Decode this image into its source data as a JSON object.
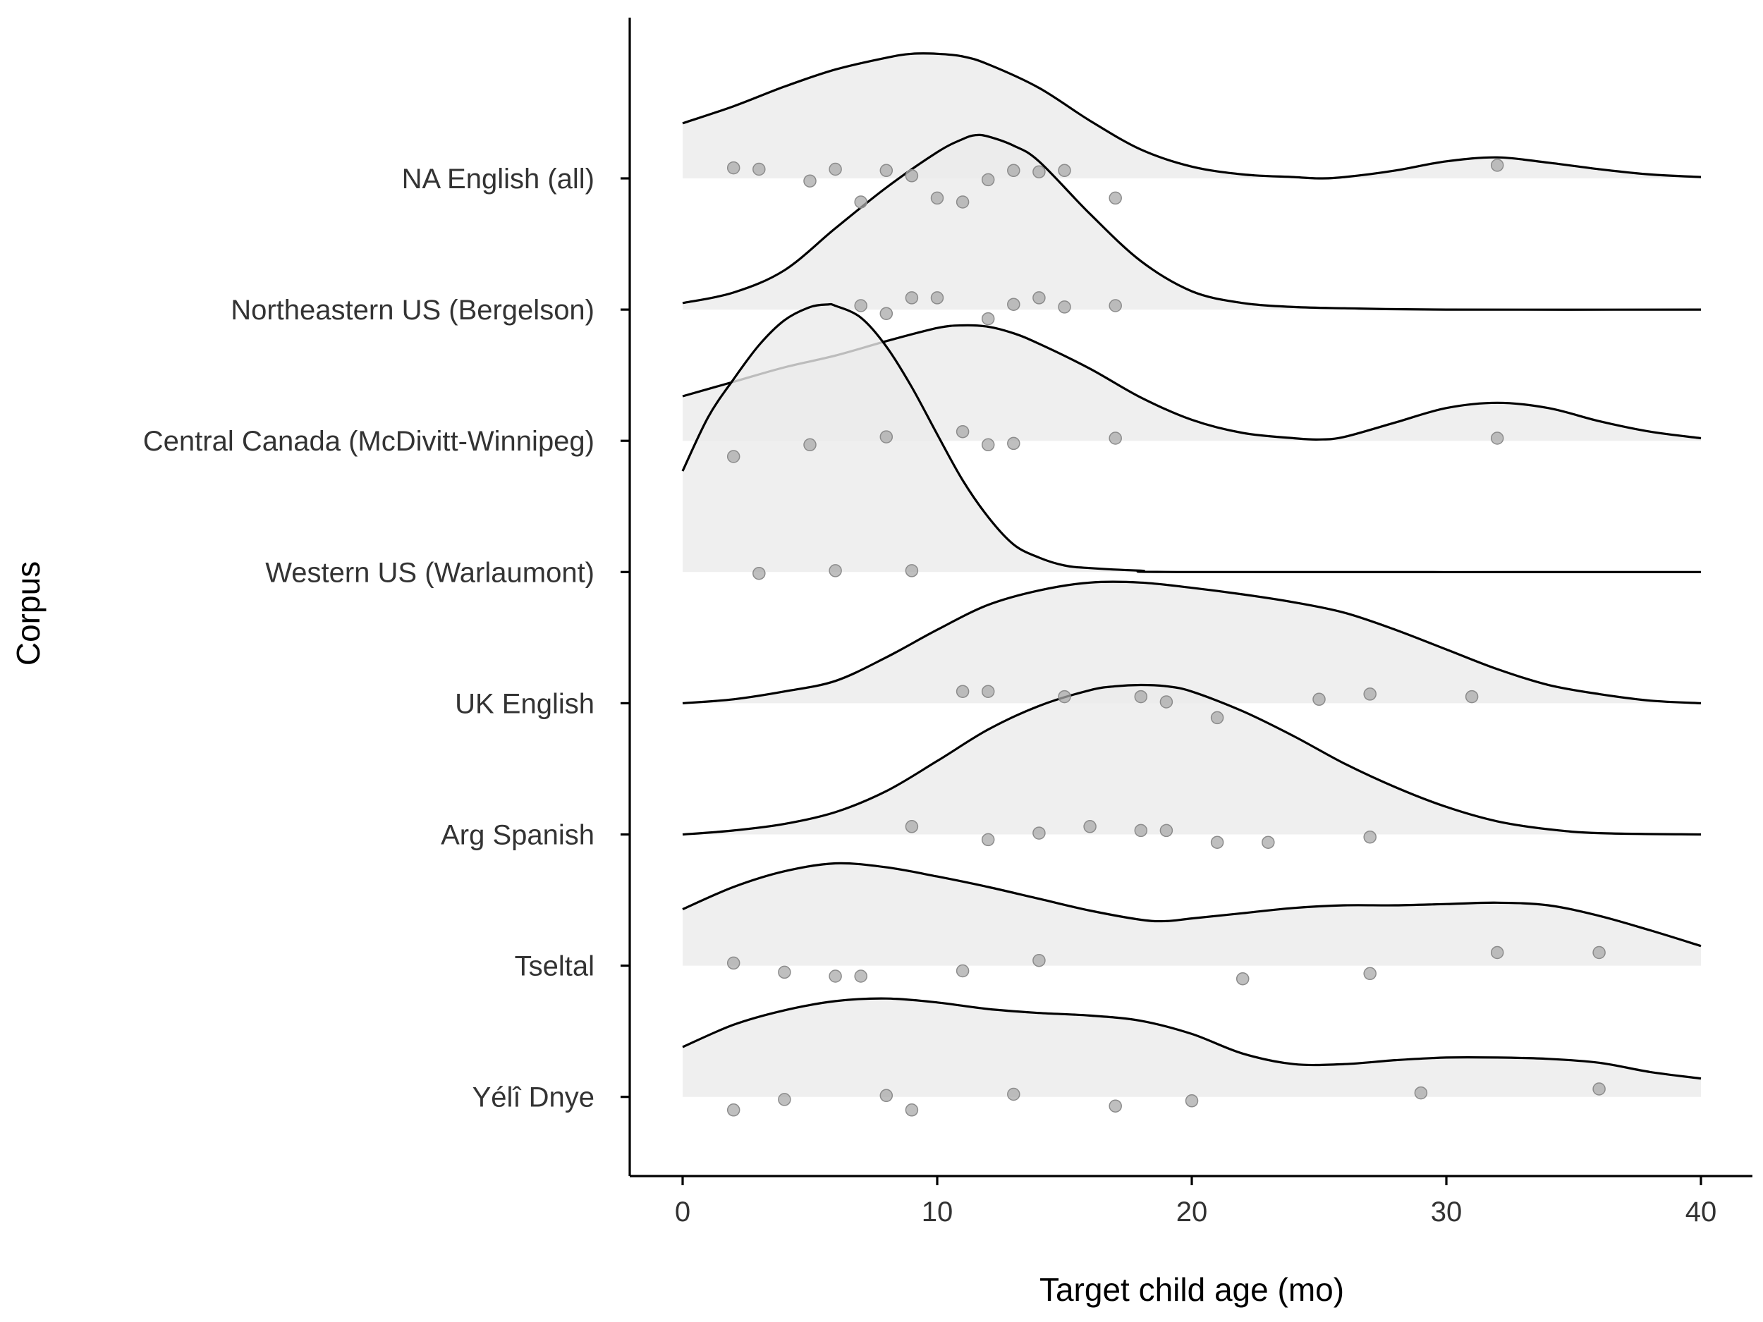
{
  "chart_data": {
    "type": "ridgeline",
    "xlabel": "Target child age (mo)",
    "ylabel": "Corpus",
    "xlim": [
      0,
      40
    ],
    "xticks": [
      0,
      10,
      20,
      30,
      40
    ],
    "grid": false,
    "legend": "none",
    "colors": {
      "fill": "#ebebeb",
      "line": "#000000",
      "point": "#aaaaaa"
    },
    "series": [
      {
        "name": "NA English (all)",
        "points": [
          [
            2,
            0.08
          ],
          [
            3,
            0.07
          ],
          [
            5,
            -0.02
          ],
          [
            6,
            0.07
          ],
          [
            7,
            -0.18
          ],
          [
            8,
            0.06
          ],
          [
            9,
            0.02
          ],
          [
            10,
            -0.15
          ],
          [
            11,
            -0.18
          ],
          [
            12,
            -0.01
          ],
          [
            13,
            0.06
          ],
          [
            14,
            0.05
          ],
          [
            15,
            0.06
          ],
          [
            17,
            -0.15
          ],
          [
            32,
            0.1
          ]
        ],
        "density": [
          [
            0,
            0.42
          ],
          [
            2,
            0.55
          ],
          [
            4,
            0.7
          ],
          [
            6,
            0.83
          ],
          [
            8,
            0.92
          ],
          [
            9,
            0.95
          ],
          [
            10,
            0.95
          ],
          [
            11,
            0.93
          ],
          [
            12,
            0.87
          ],
          [
            14,
            0.69
          ],
          [
            16,
            0.44
          ],
          [
            18,
            0.22
          ],
          [
            20,
            0.09
          ],
          [
            22,
            0.03
          ],
          [
            24,
            0.01
          ],
          [
            25,
            0.0
          ],
          [
            26,
            0.01
          ],
          [
            28,
            0.06
          ],
          [
            30,
            0.13
          ],
          [
            32,
            0.16
          ],
          [
            34,
            0.12
          ],
          [
            36,
            0.07
          ],
          [
            38,
            0.03
          ],
          [
            40,
            0.01
          ]
        ]
      },
      {
        "name": "Northeastern US (Bergelson)",
        "points": [
          [
            7,
            0.03
          ],
          [
            8,
            -0.03
          ],
          [
            9,
            0.09
          ],
          [
            10,
            0.09
          ],
          [
            12,
            -0.07
          ],
          [
            13,
            0.04
          ],
          [
            14,
            0.09
          ],
          [
            15,
            0.02
          ],
          [
            17,
            0.03
          ]
        ],
        "density": [
          [
            0,
            0.05
          ],
          [
            2,
            0.13
          ],
          [
            4,
            0.3
          ],
          [
            6,
            0.62
          ],
          [
            8,
            0.93
          ],
          [
            10,
            1.2
          ],
          [
            11,
            1.3
          ],
          [
            11.5,
            1.33
          ],
          [
            12,
            1.32
          ],
          [
            13,
            1.25
          ],
          [
            14,
            1.13
          ],
          [
            16,
            0.73
          ],
          [
            18,
            0.37
          ],
          [
            20,
            0.14
          ],
          [
            22,
            0.05
          ],
          [
            24,
            0.02
          ],
          [
            26,
            0.01
          ],
          [
            30,
            0.0
          ],
          [
            40,
            0.0
          ]
        ]
      },
      {
        "name": "Central Canada (McDivitt-Winnipeg)",
        "points": [
          [
            2,
            -0.12
          ],
          [
            5,
            -0.03
          ],
          [
            8,
            0.03
          ],
          [
            11,
            0.07
          ],
          [
            12,
            -0.03
          ],
          [
            13,
            -0.02
          ],
          [
            17,
            0.02
          ],
          [
            32,
            0.02
          ]
        ],
        "density": [
          [
            0,
            0.34
          ],
          [
            2,
            0.45
          ],
          [
            4,
            0.56
          ],
          [
            6,
            0.65
          ],
          [
            8,
            0.76
          ],
          [
            10,
            0.86
          ],
          [
            11,
            0.88
          ],
          [
            12,
            0.87
          ],
          [
            13,
            0.82
          ],
          [
            14,
            0.74
          ],
          [
            16,
            0.55
          ],
          [
            18,
            0.33
          ],
          [
            20,
            0.16
          ],
          [
            22,
            0.06
          ],
          [
            24,
            0.02
          ],
          [
            25,
            0.01
          ],
          [
            26,
            0.03
          ],
          [
            28,
            0.14
          ],
          [
            30,
            0.25
          ],
          [
            32,
            0.29
          ],
          [
            34,
            0.25
          ],
          [
            36,
            0.15
          ],
          [
            38,
            0.07
          ],
          [
            40,
            0.02
          ]
        ]
      },
      {
        "name": "Western US (Warlaumont)",
        "points": [
          [
            3,
            -0.01
          ],
          [
            6,
            0.01
          ],
          [
            9,
            0.01
          ]
        ],
        "density": [
          [
            0,
            0.77
          ],
          [
            1,
            1.18
          ],
          [
            2,
            1.47
          ],
          [
            3,
            1.73
          ],
          [
            4,
            1.92
          ],
          [
            5,
            2.02
          ],
          [
            5.7,
            2.04
          ],
          [
            6,
            2.03
          ],
          [
            7,
            1.94
          ],
          [
            8,
            1.72
          ],
          [
            9,
            1.41
          ],
          [
            10,
            1.05
          ],
          [
            11,
            0.7
          ],
          [
            12,
            0.42
          ],
          [
            13,
            0.21
          ],
          [
            14,
            0.11
          ],
          [
            15,
            0.05
          ],
          [
            16,
            0.03
          ],
          [
            18,
            0.01
          ],
          [
            20,
            0.0
          ],
          [
            40,
            0.0
          ]
        ]
      },
      {
        "name": "UK English",
        "points": [
          [
            11,
            0.09
          ],
          [
            12,
            0.09
          ],
          [
            15,
            0.05
          ],
          [
            18,
            0.05
          ],
          [
            19,
            0.01
          ],
          [
            21,
            -0.11
          ],
          [
            25,
            0.03
          ],
          [
            27,
            0.07
          ],
          [
            31,
            0.05
          ]
        ],
        "density": [
          [
            0,
            0.0
          ],
          [
            2,
            0.03
          ],
          [
            4,
            0.09
          ],
          [
            6,
            0.17
          ],
          [
            8,
            0.35
          ],
          [
            10,
            0.56
          ],
          [
            12,
            0.75
          ],
          [
            14,
            0.86
          ],
          [
            16,
            0.92
          ],
          [
            18,
            0.92
          ],
          [
            20,
            0.88
          ],
          [
            22,
            0.83
          ],
          [
            24,
            0.77
          ],
          [
            26,
            0.69
          ],
          [
            28,
            0.56
          ],
          [
            30,
            0.41
          ],
          [
            32,
            0.26
          ],
          [
            34,
            0.14
          ],
          [
            36,
            0.07
          ],
          [
            38,
            0.02
          ],
          [
            40,
            0.0
          ]
        ]
      },
      {
        "name": "Arg Spanish",
        "points": [
          [
            9,
            0.06
          ],
          [
            12,
            -0.04
          ],
          [
            14,
            0.01
          ],
          [
            16,
            0.06
          ],
          [
            18,
            0.03
          ],
          [
            19,
            0.03
          ],
          [
            21,
            -0.06
          ],
          [
            23,
            -0.06
          ],
          [
            27,
            -0.02
          ]
        ],
        "density": [
          [
            0,
            0.0
          ],
          [
            2,
            0.03
          ],
          [
            4,
            0.08
          ],
          [
            6,
            0.17
          ],
          [
            8,
            0.33
          ],
          [
            10,
            0.56
          ],
          [
            12,
            0.8
          ],
          [
            14,
            0.98
          ],
          [
            16,
            1.1
          ],
          [
            17,
            1.13
          ],
          [
            18,
            1.14
          ],
          [
            19,
            1.13
          ],
          [
            20,
            1.09
          ],
          [
            22,
            0.94
          ],
          [
            24,
            0.75
          ],
          [
            26,
            0.54
          ],
          [
            28,
            0.36
          ],
          [
            30,
            0.21
          ],
          [
            32,
            0.1
          ],
          [
            34,
            0.04
          ],
          [
            36,
            0.01
          ],
          [
            40,
            0.0
          ]
        ]
      },
      {
        "name": "Tseltal",
        "points": [
          [
            2,
            0.02
          ],
          [
            4,
            -0.05
          ],
          [
            6,
            -0.08
          ],
          [
            7,
            -0.08
          ],
          [
            11,
            -0.04
          ],
          [
            14,
            0.04
          ],
          [
            22,
            -0.1
          ],
          [
            27,
            -0.06
          ],
          [
            32,
            0.1
          ],
          [
            36,
            0.1
          ]
        ],
        "density": [
          [
            0,
            0.43
          ],
          [
            2,
            0.6
          ],
          [
            4,
            0.72
          ],
          [
            6,
            0.78
          ],
          [
            8,
            0.75
          ],
          [
            10,
            0.68
          ],
          [
            12,
            0.6
          ],
          [
            14,
            0.51
          ],
          [
            16,
            0.42
          ],
          [
            18,
            0.35
          ],
          [
            19,
            0.34
          ],
          [
            20,
            0.36
          ],
          [
            22,
            0.4
          ],
          [
            24,
            0.44
          ],
          [
            26,
            0.46
          ],
          [
            28,
            0.46
          ],
          [
            30,
            0.47
          ],
          [
            32,
            0.48
          ],
          [
            34,
            0.46
          ],
          [
            36,
            0.38
          ],
          [
            38,
            0.27
          ],
          [
            40,
            0.15
          ]
        ]
      },
      {
        "name": "Yélî Dnye",
        "points": [
          [
            2,
            -0.1
          ],
          [
            4,
            -0.02
          ],
          [
            8,
            0.01
          ],
          [
            9,
            -0.1
          ],
          [
            13,
            0.02
          ],
          [
            17,
            -0.07
          ],
          [
            20,
            -0.03
          ],
          [
            29,
            0.03
          ],
          [
            36,
            0.06
          ]
        ],
        "density": [
          [
            0,
            0.38
          ],
          [
            2,
            0.55
          ],
          [
            4,
            0.66
          ],
          [
            6,
            0.73
          ],
          [
            8,
            0.75
          ],
          [
            10,
            0.72
          ],
          [
            12,
            0.67
          ],
          [
            14,
            0.64
          ],
          [
            16,
            0.62
          ],
          [
            18,
            0.58
          ],
          [
            20,
            0.48
          ],
          [
            22,
            0.33
          ],
          [
            24,
            0.25
          ],
          [
            26,
            0.25
          ],
          [
            28,
            0.28
          ],
          [
            30,
            0.3
          ],
          [
            32,
            0.3
          ],
          [
            34,
            0.29
          ],
          [
            36,
            0.26
          ],
          [
            38,
            0.19
          ],
          [
            40,
            0.14
          ]
        ]
      }
    ]
  }
}
